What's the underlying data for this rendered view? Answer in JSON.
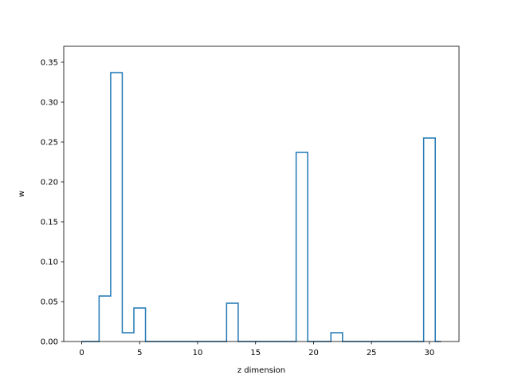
{
  "chart_data": {
    "type": "step",
    "title": "",
    "xlabel": "z dimension",
    "ylabel": "w",
    "xlim": [
      -1.55,
      32.55
    ],
    "ylim": [
      0,
      0.37
    ],
    "xticks": [
      0,
      5,
      10,
      15,
      20,
      25,
      30
    ],
    "xtick_labels": [
      "0",
      "5",
      "10",
      "15",
      "20",
      "25",
      "30"
    ],
    "yticks": [
      0.0,
      0.05,
      0.1,
      0.15,
      0.2,
      0.25,
      0.3,
      0.35
    ],
    "ytick_labels": [
      "0.00",
      "0.05",
      "0.10",
      "0.15",
      "0.20",
      "0.25",
      "0.30",
      "0.35"
    ],
    "grid": false,
    "line_color": "#1f77b4",
    "step_where": "mid",
    "x": [
      0,
      1,
      2,
      3,
      4,
      5,
      6,
      7,
      8,
      9,
      10,
      11,
      12,
      13,
      14,
      15,
      16,
      17,
      18,
      19,
      20,
      21,
      22,
      23,
      24,
      25,
      26,
      27,
      28,
      29,
      30,
      31
    ],
    "values": [
      0,
      0,
      0.057,
      0.337,
      0.011,
      0.042,
      0,
      0,
      0,
      0,
      0,
      0,
      0,
      0.048,
      0,
      0,
      0,
      0,
      0,
      0.237,
      0,
      0,
      0.011,
      0,
      0,
      0,
      0,
      0,
      0,
      0,
      0.255,
      0
    ]
  }
}
